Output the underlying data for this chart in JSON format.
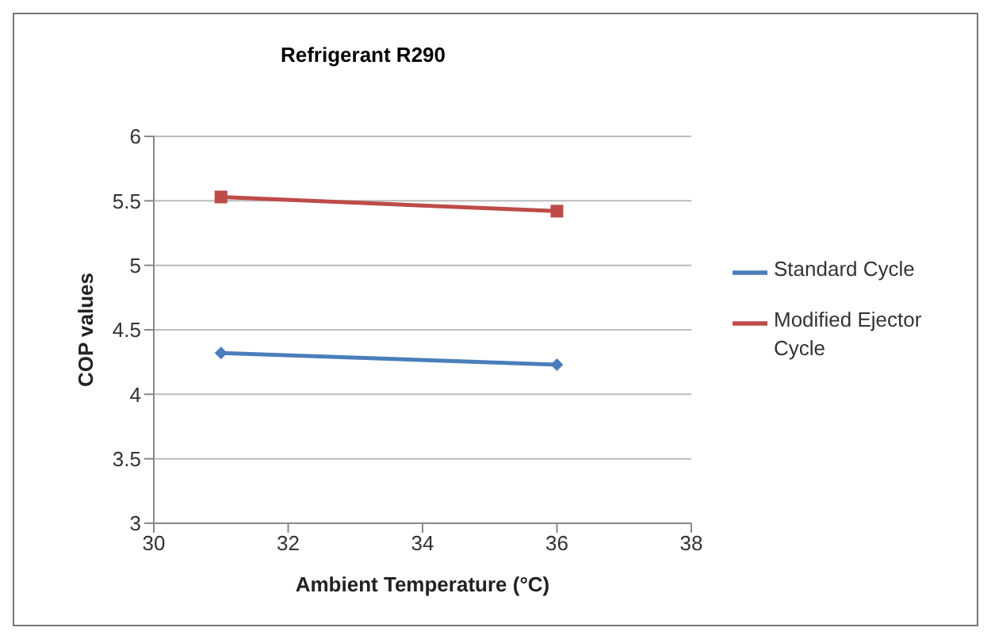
{
  "chart_data": {
    "type": "line",
    "title": "Refrigerant R290",
    "xlabel": "Ambient Temperature (°C)",
    "ylabel": "COP values",
    "x": [
      31,
      36
    ],
    "series": [
      {
        "name": "Standard Cycle",
        "color": "#4a7ebb",
        "values": [
          4.32,
          4.23
        ],
        "marker": "diamond"
      },
      {
        "name": "Modified Ejector Cycle",
        "color": "#be4b48",
        "values": [
          5.53,
          5.42
        ],
        "marker": "square"
      }
    ],
    "xlim": [
      30,
      38
    ],
    "xticks": [
      30,
      32,
      34,
      36,
      38
    ],
    "ylim": [
      3,
      6
    ],
    "yticks": [
      3,
      3.5,
      4,
      4.5,
      5,
      5.5,
      6
    ],
    "grid": "y",
    "legend": "right",
    "line_style": "solid"
  }
}
